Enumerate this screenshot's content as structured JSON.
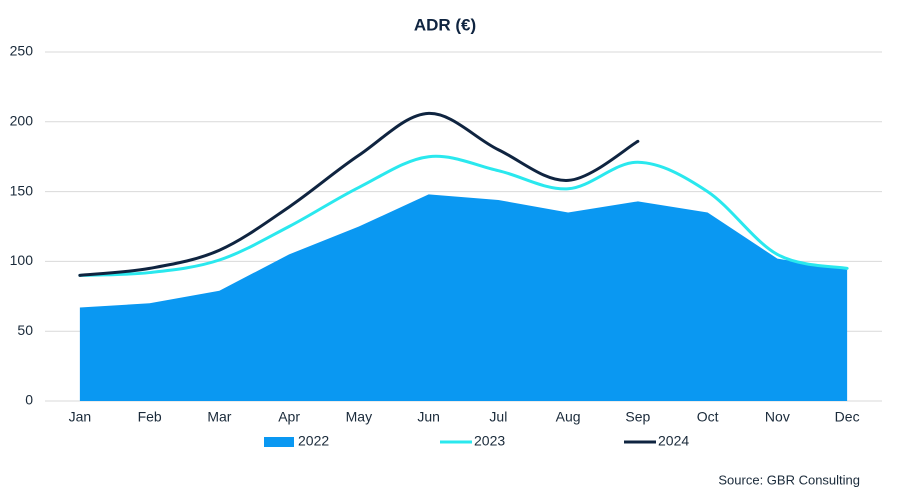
{
  "chart_data": {
    "type": "line",
    "title": "ADR (€)",
    "categories": [
      "Jan",
      "Feb",
      "Mar",
      "Apr",
      "May",
      "Jun",
      "Jul",
      "Aug",
      "Sep",
      "Oct",
      "Nov",
      "Dec"
    ],
    "series": [
      {
        "name": "2022",
        "type": "area",
        "color": "#0a98f2",
        "values": [
          67,
          70,
          79,
          105,
          125,
          148,
          144,
          135,
          143,
          135,
          102,
          94
        ]
      },
      {
        "name": "2023",
        "type": "line",
        "color": "#2ae8ee",
        "values": [
          90,
          92,
          101,
          125,
          153,
          175,
          165,
          152,
          171,
          150,
          105,
          95
        ]
      },
      {
        "name": "2024",
        "type": "line",
        "color": "#0f2440",
        "values": [
          90,
          95,
          108,
          139,
          176,
          206,
          180,
          158,
          186,
          null,
          null,
          null
        ]
      }
    ],
    "ylim": [
      0,
      250
    ],
    "yticks": [
      0,
      50,
      100,
      150,
      200,
      250
    ],
    "grid": true,
    "legend": "bottom",
    "source": "Source: GBR Consulting"
  }
}
